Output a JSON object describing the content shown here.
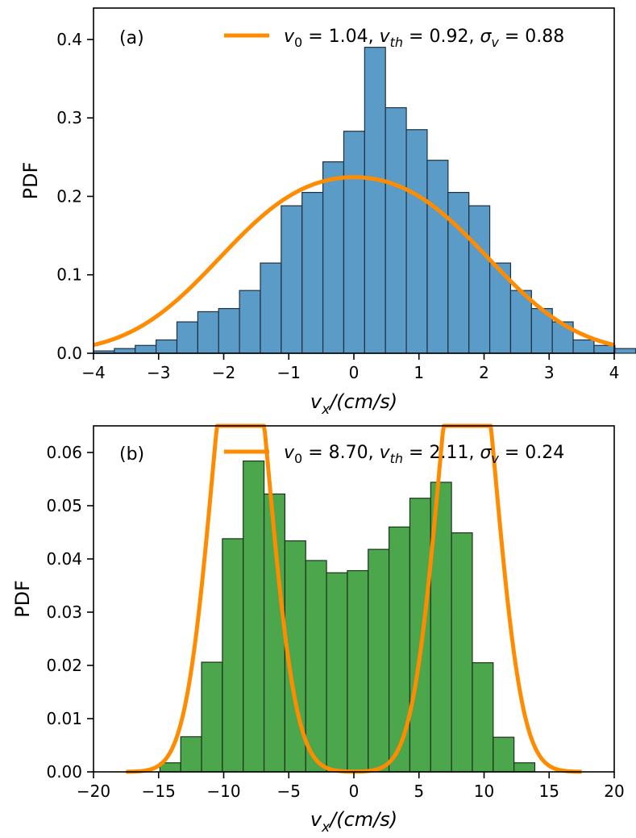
{
  "chart_data": [
    {
      "type": "bar",
      "panel_label": "(a)",
      "ylabel": "PDF",
      "xlabel": {
        "base": "v",
        "sub": "x",
        "rest": "/(cm/s)"
      },
      "xlim": [
        -4,
        4
      ],
      "ylim": [
        0,
        0.44
      ],
      "xticks": [
        -4,
        -3,
        -2,
        -1,
        0,
        1,
        2,
        3,
        4
      ],
      "xtick_labels": [
        "−4",
        "−3",
        "−2",
        "−1",
        "0",
        "1",
        "2",
        "3",
        "4"
      ],
      "yticks": [
        0.0,
        0.1,
        0.2,
        0.3,
        0.4
      ],
      "ytick_labels": [
        "0.0",
        "0.1",
        "0.2",
        "0.3",
        "0.4"
      ],
      "bar_color": "#5b9bc8",
      "edge_color": "#1f3040",
      "bins": {
        "start": -4.0,
        "width": 0.3204
      },
      "values": [
        0.003,
        0.006,
        0.01,
        0.017,
        0.04,
        0.053,
        0.057,
        0.08,
        0.115,
        0.188,
        0.205,
        0.244,
        0.283,
        0.39,
        0.313,
        0.285,
        0.246,
        0.205,
        0.188,
        0.115,
        0.08,
        0.057,
        0.04,
        0.017,
        0.01,
        0.006
      ],
      "fit": {
        "label": "v0 = 1.04, vth = 0.92, σv = 0.88",
        "color": "#ff8c00",
        "v0": 1.04,
        "vth": 0.92,
        "sigma": 0.88,
        "x_range": [
          -4,
          4
        ]
      },
      "legend": {
        "position": "top-right",
        "parts": [
          {
            "t": "v",
            "i": true
          },
          {
            "t": "0",
            "sub": true
          },
          {
            "t": " = 1.04, "
          },
          {
            "t": "v",
            "i": true
          },
          {
            "t": "th",
            "sub": true,
            "i": true
          },
          {
            "t": " = 0.92, "
          },
          {
            "t": "σ",
            "i": true
          },
          {
            "t": "v",
            "sub": true,
            "i": true
          },
          {
            "t": " = 0.88"
          }
        ]
      }
    },
    {
      "type": "bar",
      "panel_label": "(b)",
      "ylabel": "PDF",
      "xlabel": {
        "base": "v",
        "sub": "x",
        "rest": "/(cm/s)"
      },
      "xlim": [
        -20,
        20
      ],
      "ylim": [
        0,
        0.065
      ],
      "xticks": [
        -20,
        -15,
        -10,
        -5,
        0,
        5,
        10,
        15,
        20
      ],
      "xtick_labels": [
        "−20",
        "−15",
        "−10",
        "−5",
        "0",
        "5",
        "10",
        "15",
        "20"
      ],
      "yticks": [
        0.0,
        0.01,
        0.02,
        0.03,
        0.04,
        0.05,
        0.06
      ],
      "ytick_labels": [
        "0.00",
        "0.01",
        "0.02",
        "0.03",
        "0.04",
        "0.05",
        "0.06"
      ],
      "bar_color": "#4ca64c",
      "edge_color": "#1a331a",
      "bins": {
        "start": -14.9,
        "width": 1.6
      },
      "values": [
        0.0017,
        0.0066,
        0.0206,
        0.0438,
        0.0584,
        0.0522,
        0.0434,
        0.0397,
        0.0374,
        0.0378,
        0.0418,
        0.046,
        0.0514,
        0.0544,
        0.0449,
        0.0205,
        0.0065,
        0.0017
      ],
      "fit": {
        "label": "v0 = 8.70, vth = 2.11, σv = 0.24",
        "color": "#ff8c00",
        "v0": 8.7,
        "vth": 2.11,
        "sigma": 0.24,
        "x_range": [
          -17.5,
          17.5
        ]
      },
      "legend": {
        "position": "top-right",
        "parts": [
          {
            "t": "v",
            "i": true
          },
          {
            "t": "0",
            "sub": true
          },
          {
            "t": " = 8.70, "
          },
          {
            "t": "v",
            "i": true
          },
          {
            "t": "th",
            "sub": true,
            "i": true
          },
          {
            "t": " = 2.11, "
          },
          {
            "t": "σ",
            "i": true
          },
          {
            "t": "v",
            "sub": true,
            "i": true
          },
          {
            "t": " = 0.24"
          }
        ]
      }
    }
  ]
}
